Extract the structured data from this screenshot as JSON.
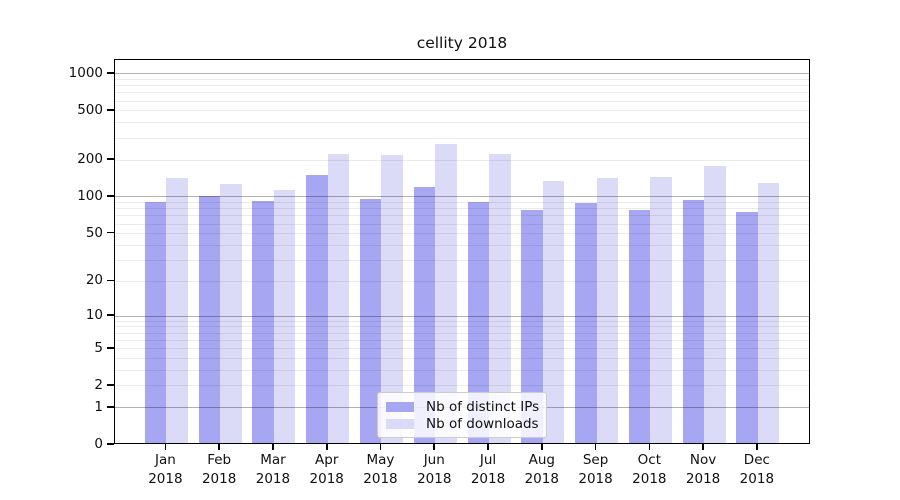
{
  "title": "cellity 2018",
  "colors": {
    "distinct_ips": "#a6a6f2",
    "downloads": "#dbdbf8",
    "major_grid": "rgba(0,0,0,0.30)",
    "minor_grid": "rgba(0,0,0,0.08)",
    "axis": "#000000"
  },
  "legend": {
    "items": [
      {
        "label": "Nb of distinct IPs",
        "color": "#a6a6f2"
      },
      {
        "label": "Nb of downloads",
        "color": "#dbdbf8"
      }
    ]
  },
  "chart_data": {
    "type": "bar",
    "title": "cellity 2018",
    "categories": [
      "Jan 2018",
      "Feb 2018",
      "Mar 2018",
      "Apr 2018",
      "May 2018",
      "Jun 2018",
      "Jul 2018",
      "Aug 2018",
      "Sep 2018",
      "Oct 2018",
      "Nov 2018",
      "Dec 2018"
    ],
    "category_line1": [
      "Jan",
      "Feb",
      "Mar",
      "Apr",
      "May",
      "Jun",
      "Jul",
      "Aug",
      "Sep",
      "Oct",
      "Nov",
      "Dec"
    ],
    "category_line2": "2018",
    "series": [
      {
        "name": "Nb of distinct IPs",
        "color": "#a6a6f2",
        "values": [
          88,
          98,
          89,
          146,
          92,
          117,
          87,
          75,
          86,
          76,
          91,
          72
        ]
      },
      {
        "name": "Nb of downloads",
        "color": "#dbdbf8",
        "values": [
          138,
          122,
          109,
          217,
          210,
          260,
          217,
          130,
          138,
          140,
          172,
          125
        ]
      }
    ],
    "yscale": "symlog-ln(1+v)",
    "yticks": [
      0,
      1,
      2,
      5,
      10,
      20,
      50,
      100,
      200,
      500,
      1000
    ],
    "minor_gridlines": [
      2,
      3,
      4,
      5,
      6,
      7,
      8,
      9,
      20,
      30,
      40,
      50,
      60,
      70,
      80,
      90,
      200,
      300,
      400,
      500,
      600,
      700,
      800,
      900
    ],
    "major_gridlines": [
      1,
      10,
      100,
      1000
    ],
    "ylim": [
      0,
      1290
    ],
    "xlabel": "",
    "ylabel": "",
    "grid": true,
    "legend_position": "inside lower-left-of-center"
  }
}
